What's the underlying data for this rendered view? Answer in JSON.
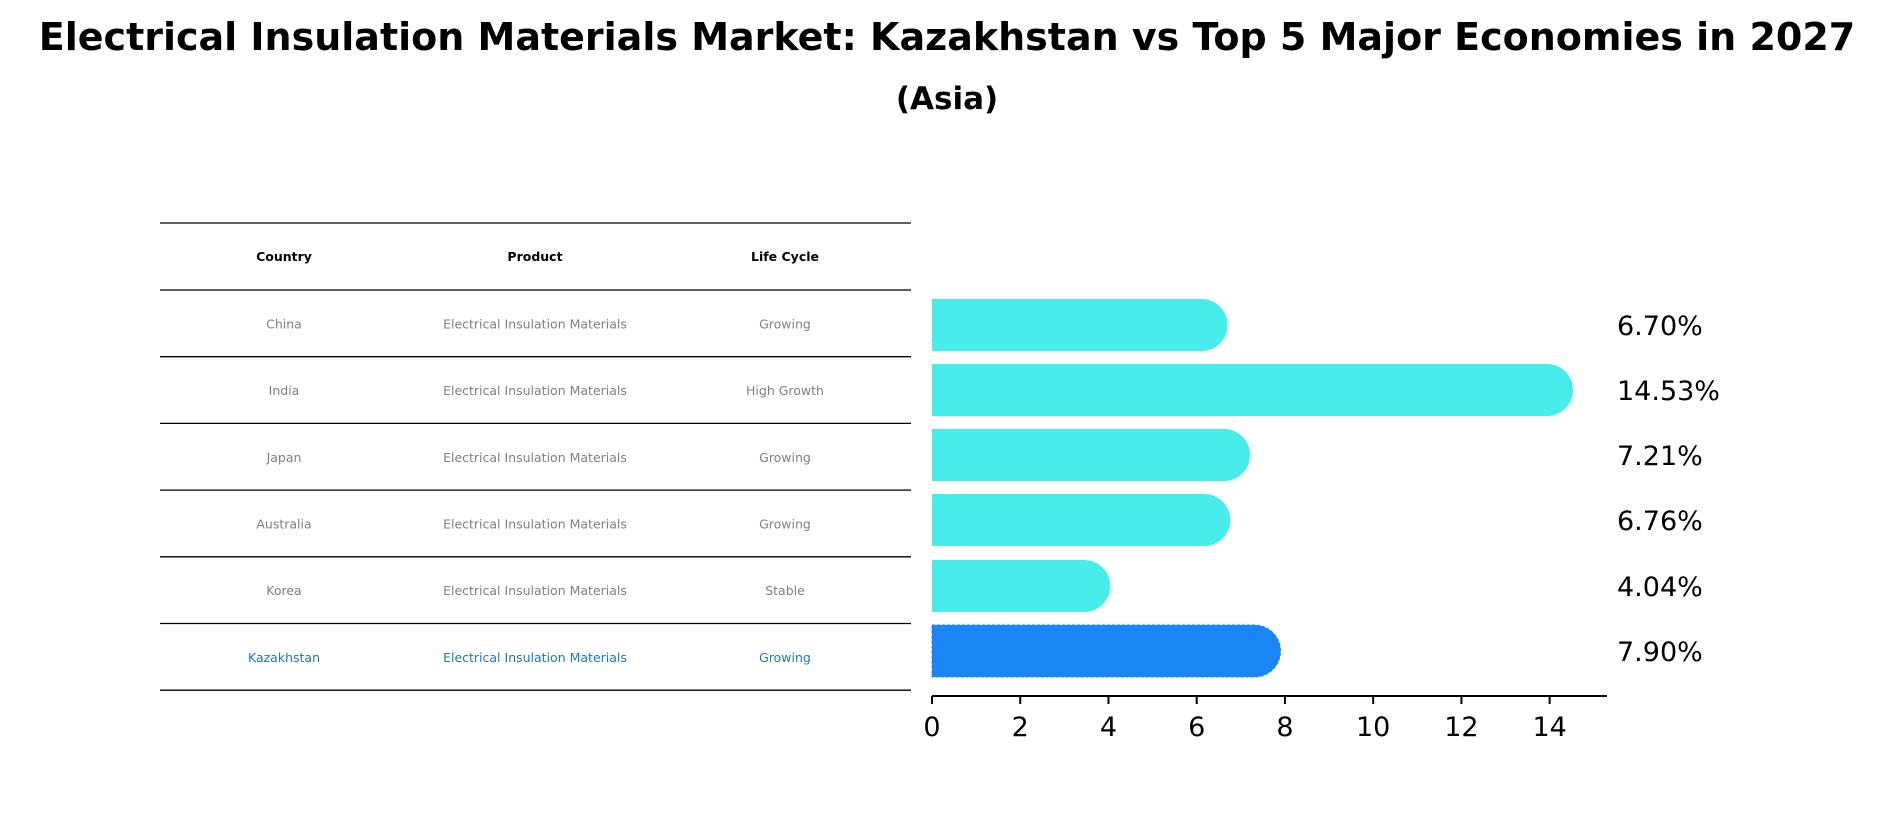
{
  "chart_data": {
    "type": "bar",
    "orientation": "horizontal",
    "title": "Electrical Insulation Materials Market: Kazakhstan vs Top 5 Major Economies in 2027",
    "subtitle": "(Asia)",
    "categories": [
      "China",
      "India",
      "Japan",
      "Australia",
      "Korea",
      "Kazakhstan"
    ],
    "values": [
      6.7,
      14.53,
      7.21,
      6.76,
      4.04,
      7.9
    ],
    "value_labels": [
      "6.70%",
      "14.53%",
      "7.21%",
      "6.76%",
      "4.04%",
      "7.90%"
    ],
    "highlight": "Kazakhstan",
    "xlim": [
      0,
      15.3
    ],
    "xticks": [
      0,
      2,
      4,
      6,
      8,
      10,
      12,
      14
    ],
    "xlabel": "",
    "ylabel": "",
    "grid": false,
    "colors": {
      "default": "#48ECEA",
      "highlight": "#1A86F5",
      "highlight_text": "#1f77b4",
      "muted_text": "#808080"
    }
  },
  "table": {
    "headers": [
      "Country",
      "Product",
      "Life Cycle"
    ],
    "rows": [
      [
        "China",
        "Electrical Insulation Materials",
        "Growing"
      ],
      [
        "India",
        "Electrical Insulation Materials",
        "High Growth"
      ],
      [
        "Japan",
        "Electrical Insulation Materials",
        "Growing"
      ],
      [
        "Australia",
        "Electrical Insulation Materials",
        "Growing"
      ],
      [
        "Korea",
        "Electrical Insulation Materials",
        "Stable"
      ],
      [
        "Kazakhstan",
        "Electrical Insulation Materials",
        "Growing"
      ]
    ]
  }
}
